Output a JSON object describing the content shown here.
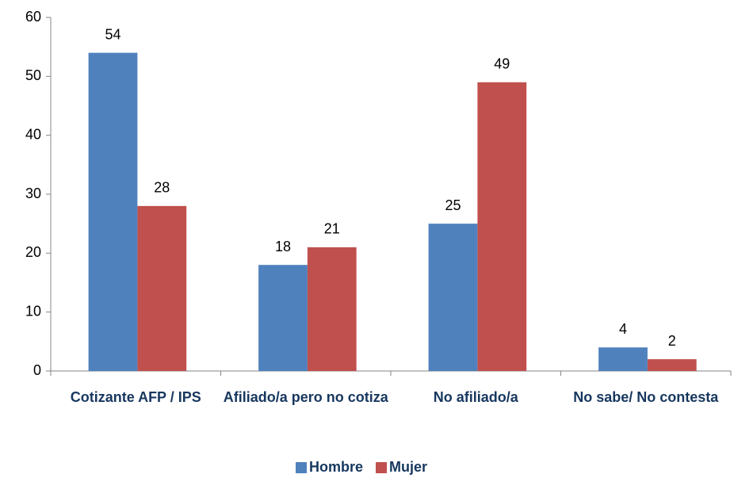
{
  "chart_data": {
    "type": "bar",
    "categories": [
      "Cotizante AFP / IPS",
      "Afiliado/a pero no cotiza",
      "No afiliado/a",
      "No sabe/ No contesta"
    ],
    "series": [
      {
        "name": "Hombre",
        "color": "#4f81bd",
        "values": [
          54,
          18,
          25,
          4
        ]
      },
      {
        "name": "Mujer",
        "color": "#c0504d",
        "values": [
          28,
          21,
          49,
          2
        ]
      }
    ],
    "ylim": [
      0,
      60
    ],
    "yticks": [
      0,
      10,
      20,
      30,
      40,
      50,
      60
    ],
    "grid": false,
    "legend": "bottom"
  }
}
